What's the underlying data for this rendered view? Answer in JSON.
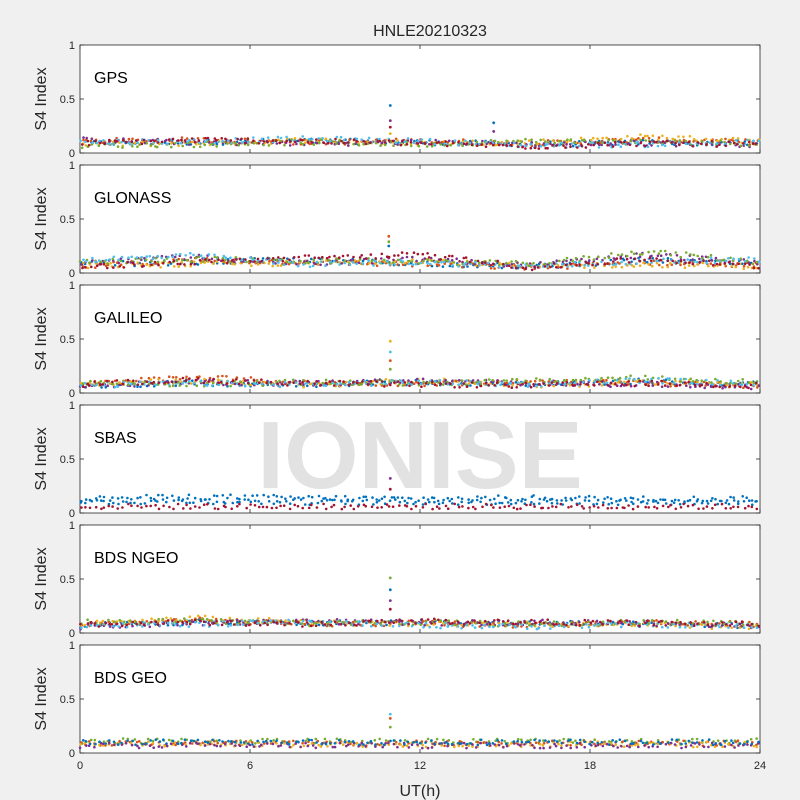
{
  "chart_data": {
    "type": "scatter",
    "title": "HNLE20210323",
    "xlabel": "UT(h)",
    "ylabel": "S4 Index",
    "xlim": [
      0,
      24
    ],
    "ylim": [
      0,
      1
    ],
    "xticks": [
      0,
      6,
      12,
      18,
      24
    ],
    "yticks": [
      0,
      0.5,
      1
    ],
    "watermark": "IONISE",
    "colors": [
      "#0072BD",
      "#D95319",
      "#EDB120",
      "#7E2F8E",
      "#77AC30",
      "#4DBEEE",
      "#A2142F"
    ],
    "panels": [
      {
        "label": "GPS",
        "series": [
          {
            "x": [
              0,
              4,
              8,
              12,
              16,
              20,
              24
            ],
            "y": [
              0.09,
              0.1,
              0.11,
              0.1,
              0.08,
              0.1,
              0.09
            ]
          },
          {
            "x": [
              0,
              4,
              8,
              12,
              16,
              20,
              24
            ],
            "y": [
              0.11,
              0.12,
              0.1,
              0.11,
              0.09,
              0.12,
              0.1
            ]
          },
          {
            "x": [
              0,
              4,
              8,
              12,
              16,
              20,
              24
            ],
            "y": [
              0.08,
              0.09,
              0.12,
              0.09,
              0.1,
              0.15,
              0.11
            ]
          },
          {
            "x": [
              0,
              4,
              8,
              12,
              16,
              20,
              24
            ],
            "y": [
              0.12,
              0.1,
              0.09,
              0.1,
              0.08,
              0.09,
              0.08
            ]
          },
          {
            "x": [
              0,
              4,
              8,
              12,
              16,
              20,
              24
            ],
            "y": [
              0.07,
              0.08,
              0.1,
              0.08,
              0.11,
              0.1,
              0.09
            ]
          },
          {
            "x": [
              0,
              4,
              8,
              12,
              16,
              20,
              24
            ],
            "y": [
              0.1,
              0.11,
              0.13,
              0.11,
              0.07,
              0.08,
              0.1
            ]
          },
          {
            "x": [
              0,
              4,
              8,
              12,
              16,
              20,
              24
            ],
            "y": [
              0.09,
              0.12,
              0.11,
              0.09,
              0.06,
              0.09,
              0.08
            ]
          }
        ],
        "spikes": [
          {
            "x": 10.95,
            "y": [
              0.44,
              0.3,
              0.24,
              0.18
            ]
          },
          {
            "x": 14.6,
            "y": [
              0.28,
              0.2
            ]
          }
        ]
      },
      {
        "label": "GLONASS",
        "series": [
          {
            "x": [
              0,
              4,
              8,
              12,
              16,
              20,
              24
            ],
            "y": [
              0.08,
              0.1,
              0.12,
              0.09,
              0.06,
              0.12,
              0.08
            ]
          },
          {
            "x": [
              0,
              4,
              8,
              12,
              16,
              20,
              24
            ],
            "y": [
              0.06,
              0.12,
              0.1,
              0.08,
              0.05,
              0.1,
              0.07
            ]
          },
          {
            "x": [
              0,
              4,
              8,
              12,
              16,
              20,
              24
            ],
            "y": [
              0.07,
              0.08,
              0.09,
              0.12,
              0.06,
              0.08,
              0.06
            ]
          },
          {
            "x": [
              0,
              4,
              8,
              12,
              16,
              20,
              24
            ],
            "y": [
              0.09,
              0.15,
              0.09,
              0.13,
              0.07,
              0.17,
              0.09
            ]
          },
          {
            "x": [
              0,
              4,
              8,
              12,
              16,
              20,
              24
            ],
            "y": [
              0.1,
              0.13,
              0.11,
              0.11,
              0.08,
              0.2,
              0.1
            ]
          },
          {
            "x": [
              0,
              4,
              8,
              12,
              16,
              20,
              24
            ],
            "y": [
              0.12,
              0.16,
              0.08,
              0.1,
              0.06,
              0.11,
              0.12
            ]
          },
          {
            "x": [
              0,
              4,
              8,
              12,
              16,
              20,
              24
            ],
            "y": [
              0.06,
              0.1,
              0.14,
              0.17,
              0.05,
              0.13,
              0.06
            ]
          }
        ],
        "spikes": [
          {
            "x": 10.9,
            "y": [
              0.34,
              0.29,
              0.25
            ]
          }
        ]
      },
      {
        "label": "GALILEO",
        "series": [
          {
            "x": [
              0,
              4,
              8,
              12,
              16,
              20,
              24
            ],
            "y": [
              0.07,
              0.09,
              0.08,
              0.1,
              0.08,
              0.11,
              0.08
            ]
          },
          {
            "x": [
              0,
              4,
              8,
              12,
              16,
              20,
              24
            ],
            "y": [
              0.08,
              0.15,
              0.09,
              0.09,
              0.1,
              0.09,
              0.07
            ]
          },
          {
            "x": [
              0,
              4,
              8,
              12,
              16,
              20,
              24
            ],
            "y": [
              0.09,
              0.11,
              0.07,
              0.12,
              0.07,
              0.1,
              0.09
            ]
          },
          {
            "x": [
              0,
              4,
              8,
              12,
              16,
              20,
              24
            ],
            "y": [
              0.06,
              0.1,
              0.09,
              0.11,
              0.09,
              0.08,
              0.06
            ]
          },
          {
            "x": [
              0,
              4,
              8,
              12,
              16,
              20,
              24
            ],
            "y": [
              0.1,
              0.08,
              0.1,
              0.09,
              0.11,
              0.14,
              0.1
            ]
          },
          {
            "x": [
              0,
              4,
              8,
              12,
              16,
              20,
              24
            ],
            "y": [
              0.07,
              0.09,
              0.08,
              0.1,
              0.08,
              0.12,
              0.08
            ]
          },
          {
            "x": [
              0,
              4,
              8,
              12,
              16,
              20,
              24
            ],
            "y": [
              0.08,
              0.12,
              0.09,
              0.08,
              0.07,
              0.09,
              0.07
            ]
          }
        ],
        "spikes": [
          {
            "x": 10.95,
            "y": [
              0.48,
              0.38,
              0.3,
              0.22
            ]
          }
        ]
      },
      {
        "label": "SBAS",
        "series": [
          {
            "x": [
              0,
              4,
              8,
              12,
              16,
              20,
              24
            ],
            "y": [
              0.13,
              0.15,
              0.14,
              0.13,
              0.14,
              0.13,
              0.13
            ]
          },
          {
            "x": [
              0,
              4,
              8,
              12,
              16,
              20,
              24
            ],
            "y": [
              0.1,
              0.11,
              0.1,
              0.1,
              0.1,
              0.1,
              0.1
            ]
          },
          {
            "x": [
              0,
              4,
              8,
              12,
              16,
              20,
              24
            ],
            "y": [
              0.06,
              0.06,
              0.06,
              0.06,
              0.06,
              0.06,
              0.06
            ]
          }
        ],
        "series_colors": [
          "#0072BD",
          "#0072BD",
          "#A2142F"
        ],
        "spikes": [
          {
            "x": 10.95,
            "y": [
              0.32,
              0.22
            ]
          }
        ]
      },
      {
        "label": "BDS NGEO",
        "series": [
          {
            "x": [
              0,
              4,
              8,
              12,
              16,
              20,
              24
            ],
            "y": [
              0.07,
              0.1,
              0.09,
              0.1,
              0.09,
              0.08,
              0.07
            ]
          },
          {
            "x": [
              0,
              4,
              8,
              12,
              16,
              20,
              24
            ],
            "y": [
              0.08,
              0.12,
              0.08,
              0.09,
              0.07,
              0.1,
              0.08
            ]
          },
          {
            "x": [
              0,
              4,
              8,
              12,
              16,
              20,
              24
            ],
            "y": [
              0.09,
              0.14,
              0.1,
              0.08,
              0.08,
              0.07,
              0.06
            ]
          },
          {
            "x": [
              0,
              4,
              8,
              12,
              16,
              20,
              24
            ],
            "y": [
              0.06,
              0.09,
              0.11,
              0.09,
              0.1,
              0.09,
              0.07
            ]
          },
          {
            "x": [
              0,
              4,
              8,
              12,
              16,
              20,
              24
            ],
            "y": [
              0.1,
              0.11,
              0.09,
              0.1,
              0.08,
              0.1,
              0.09
            ]
          },
          {
            "x": [
              0,
              4,
              8,
              12,
              16,
              20,
              24
            ],
            "y": [
              0.07,
              0.08,
              0.1,
              0.07,
              0.06,
              0.08,
              0.06
            ]
          },
          {
            "x": [
              0,
              4,
              8,
              12,
              16,
              20,
              24
            ],
            "y": [
              0.08,
              0.1,
              0.08,
              0.11,
              0.1,
              0.09,
              0.08
            ]
          }
        ],
        "spikes": [
          {
            "x": 10.95,
            "y": [
              0.51,
              0.4,
              0.3,
              0.22
            ]
          }
        ]
      },
      {
        "label": "BDS GEO",
        "series": [
          {
            "x": [
              0,
              4,
              8,
              12,
              16,
              20,
              24
            ],
            "y": [
              0.11,
              0.11,
              0.11,
              0.11,
              0.11,
              0.11,
              0.11
            ]
          },
          {
            "x": [
              0,
              4,
              8,
              12,
              16,
              20,
              24
            ],
            "y": [
              0.09,
              0.09,
              0.09,
              0.09,
              0.09,
              0.09,
              0.09
            ]
          },
          {
            "x": [
              0,
              4,
              8,
              12,
              16,
              20,
              24
            ],
            "y": [
              0.08,
              0.08,
              0.08,
              0.08,
              0.08,
              0.08,
              0.08
            ]
          },
          {
            "x": [
              0,
              4,
              8,
              12,
              16,
              20,
              24
            ],
            "y": [
              0.07,
              0.07,
              0.07,
              0.07,
              0.07,
              0.07,
              0.07
            ]
          },
          {
            "x": [
              0,
              4,
              8,
              12,
              16,
              20,
              24
            ],
            "y": [
              0.1,
              0.1,
              0.1,
              0.1,
              0.1,
              0.1,
              0.1
            ]
          }
        ],
        "series_colors": [
          "#77AC30",
          "#D95319",
          "#EDB120",
          "#7E2F8E",
          "#0072BD"
        ],
        "spikes": [
          {
            "x": 10.95,
            "y": [
              0.36,
              0.32,
              0.24
            ]
          }
        ]
      }
    ]
  }
}
